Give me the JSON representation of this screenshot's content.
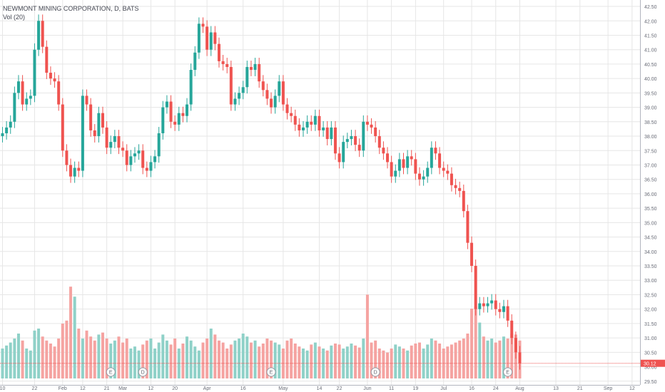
{
  "header": {
    "symbol_title": "NEWMONT MINING CORPORATION, D, BATS",
    "volume_label": "Vol (20)"
  },
  "colors": {
    "up": "#26a69a",
    "down": "#ef5350",
    "up_volume": "#8fd1c8",
    "down_volume": "#f5a3a1",
    "grid": "#e6e6e6",
    "axis_text": "#6a6d78",
    "last_price_bg": "#ef5350"
  },
  "chart_data": {
    "type": "candlestick",
    "title": "NEWMONT MINING CORPORATION, D, BATS",
    "y_axis": {
      "position": "right",
      "ylim": [
        29.25,
        42.6
      ],
      "ticks": [
        "29.50",
        "30.00",
        "30.50",
        "31.00",
        "31.50",
        "32.00",
        "32.50",
        "33.00",
        "33.50",
        "34.00",
        "34.50",
        "35.00",
        "35.50",
        "36.00",
        "36.50",
        "37.00",
        "37.50",
        "38.00",
        "38.50",
        "39.00",
        "39.50",
        "40.00",
        "40.50",
        "41.00",
        "41.50",
        "42.00",
        "42.50"
      ]
    },
    "x_axis": {
      "labels": [
        {
          "text": "10",
          "bar": 0
        },
        {
          "text": "22",
          "bar": 8
        },
        {
          "text": "Feb",
          "bar": 15
        },
        {
          "text": "12",
          "bar": 20
        },
        {
          "text": "21",
          "bar": 26
        },
        {
          "text": "Mar",
          "bar": 30
        },
        {
          "text": "12",
          "bar": 37
        },
        {
          "text": "20",
          "bar": 43
        },
        {
          "text": "Apr",
          "bar": 51
        },
        {
          "text": "16",
          "bar": 60
        },
        {
          "text": "May",
          "bar": 70
        },
        {
          "text": "14",
          "bar": 79
        },
        {
          "text": "22",
          "bar": 84
        },
        {
          "text": "Jun",
          "bar": 91
        },
        {
          "text": "11",
          "bar": 97
        },
        {
          "text": "19",
          "bar": 103
        },
        {
          "text": "Jul",
          "bar": 110
        },
        {
          "text": "16",
          "bar": 117
        },
        {
          "text": "24",
          "bar": 123
        },
        {
          "text": "Aug",
          "bar": 129
        },
        {
          "text": "13",
          "bar": 138
        },
        {
          "text": "21",
          "bar": 144
        },
        {
          "text": "Sep",
          "bar": 151
        },
        {
          "text": "12",
          "bar": 157
        }
      ]
    },
    "last_price": 30.12,
    "last_price_label": "30.12",
    "events": [
      {
        "label": "E",
        "bar": 27
      },
      {
        "label": "D",
        "bar": 35
      },
      {
        "label": "E",
        "bar": 67
      },
      {
        "label": "D",
        "bar": 93
      },
      {
        "label": "E",
        "bar": 126
      }
    ],
    "close": [
      38.1,
      38.3,
      38.5,
      39.5,
      39.9,
      39.1,
      39.3,
      39.4,
      41.0,
      42.0,
      41.1,
      40.2,
      40.0,
      39.9,
      39.1,
      37.5,
      37.0,
      36.6,
      36.9,
      36.8,
      39.4,
      39.1,
      38.2,
      38.0,
      38.8,
      38.3,
      37.6,
      37.8,
      38.0,
      37.6,
      37.5,
      37.0,
      37.3,
      37.4,
      37.5,
      36.9,
      36.8,
      37.1,
      37.3,
      38.1,
      39.0,
      39.2,
      38.5,
      38.4,
      38.8,
      38.7,
      39.1,
      40.3,
      40.9,
      41.9,
      41.8,
      41.0,
      41.6,
      41.2,
      40.6,
      40.5,
      40.4,
      39.1,
      39.3,
      39.5,
      39.7,
      40.4,
      40.3,
      40.5,
      39.9,
      39.6,
      39.3,
      39.0,
      39.4,
      39.9,
      39.1,
      38.8,
      38.7,
      38.4,
      38.2,
      38.3,
      38.5,
      38.4,
      38.7,
      38.2,
      38.3,
      37.9,
      38.3,
      37.4,
      37.1,
      37.8,
      37.9,
      38.0,
      37.7,
      37.5,
      38.5,
      38.4,
      38.3,
      38.0,
      37.6,
      37.4,
      37.1,
      36.6,
      36.8,
      37.2,
      36.9,
      37.3,
      37.2,
      36.7,
      36.5,
      36.6,
      36.9,
      37.6,
      37.4,
      36.9,
      36.8,
      36.7,
      36.3,
      36.2,
      36.1,
      35.4,
      34.3,
      33.5,
      32.0,
      32.2,
      32.1,
      32.2,
      32.3,
      32.0,
      31.9,
      32.1,
      31.6,
      31.0,
      30.5,
      30.12
    ],
    "open": [
      38.0,
      38.1,
      38.3,
      38.5,
      39.5,
      39.9,
      39.1,
      39.3,
      39.4,
      41.0,
      42.0,
      41.1,
      40.2,
      40.0,
      39.9,
      39.1,
      37.5,
      37.0,
      36.6,
      36.9,
      36.8,
      39.4,
      39.1,
      38.2,
      38.0,
      38.8,
      38.3,
      37.6,
      37.8,
      38.0,
      37.6,
      37.5,
      37.0,
      37.3,
      37.4,
      37.5,
      36.9,
      36.8,
      37.1,
      37.3,
      38.1,
      39.0,
      39.2,
      38.5,
      38.4,
      38.8,
      38.7,
      39.1,
      40.3,
      40.9,
      41.9,
      41.8,
      41.0,
      41.6,
      41.2,
      40.6,
      40.5,
      40.4,
      39.1,
      39.3,
      39.5,
      39.7,
      40.4,
      40.3,
      40.5,
      39.9,
      39.6,
      39.3,
      39.0,
      39.4,
      39.9,
      39.1,
      38.8,
      38.7,
      38.4,
      38.2,
      38.3,
      38.5,
      38.4,
      38.7,
      38.2,
      38.3,
      37.9,
      38.3,
      37.4,
      37.1,
      37.8,
      37.9,
      38.0,
      37.7,
      37.5,
      38.5,
      38.4,
      38.3,
      38.0,
      37.6,
      37.4,
      37.1,
      36.6,
      36.8,
      37.2,
      36.9,
      37.3,
      37.2,
      36.7,
      36.5,
      36.6,
      36.9,
      37.6,
      37.4,
      36.9,
      36.8,
      36.7,
      36.3,
      36.2,
      36.1,
      35.4,
      34.3,
      33.5,
      32.0,
      32.2,
      32.1,
      32.2,
      32.3,
      32.0,
      31.9,
      32.1,
      31.6,
      31.0,
      30.5
    ],
    "volume": [
      0.3,
      0.33,
      0.36,
      0.4,
      0.45,
      0.38,
      0.3,
      0.28,
      0.48,
      0.5,
      0.42,
      0.38,
      0.35,
      0.32,
      0.4,
      0.55,
      0.58,
      0.92,
      0.82,
      0.5,
      0.4,
      0.48,
      0.42,
      0.38,
      0.44,
      0.46,
      0.4,
      0.35,
      0.38,
      0.42,
      0.36,
      0.4,
      0.3,
      0.32,
      0.28,
      0.34,
      0.38,
      0.4,
      0.3,
      0.36,
      0.44,
      0.38,
      0.34,
      0.4,
      0.3,
      0.35,
      0.42,
      0.38,
      0.32,
      0.28,
      0.36,
      0.4,
      0.5,
      0.44,
      0.38,
      0.36,
      0.3,
      0.34,
      0.38,
      0.4,
      0.45,
      0.42,
      0.36,
      0.38,
      0.32,
      0.35,
      0.4,
      0.38,
      0.36,
      0.34,
      0.3,
      0.38,
      0.4,
      0.35,
      0.32,
      0.3,
      0.28,
      0.34,
      0.36,
      0.32,
      0.3,
      0.28,
      0.33,
      0.35,
      0.34,
      0.3,
      0.32,
      0.35,
      0.33,
      0.31,
      0.4,
      0.84,
      0.36,
      0.38,
      0.3,
      0.28,
      0.26,
      0.3,
      0.34,
      0.32,
      0.3,
      0.28,
      0.33,
      0.35,
      0.36,
      0.3,
      0.34,
      0.4,
      0.38,
      0.35,
      0.3,
      0.32,
      0.34,
      0.36,
      0.38,
      0.4,
      0.45,
      0.7,
      0.72,
      0.56,
      0.42,
      0.38,
      0.4,
      0.36,
      0.38,
      0.42,
      0.4,
      0.45,
      0.44,
      0.38
    ]
  }
}
